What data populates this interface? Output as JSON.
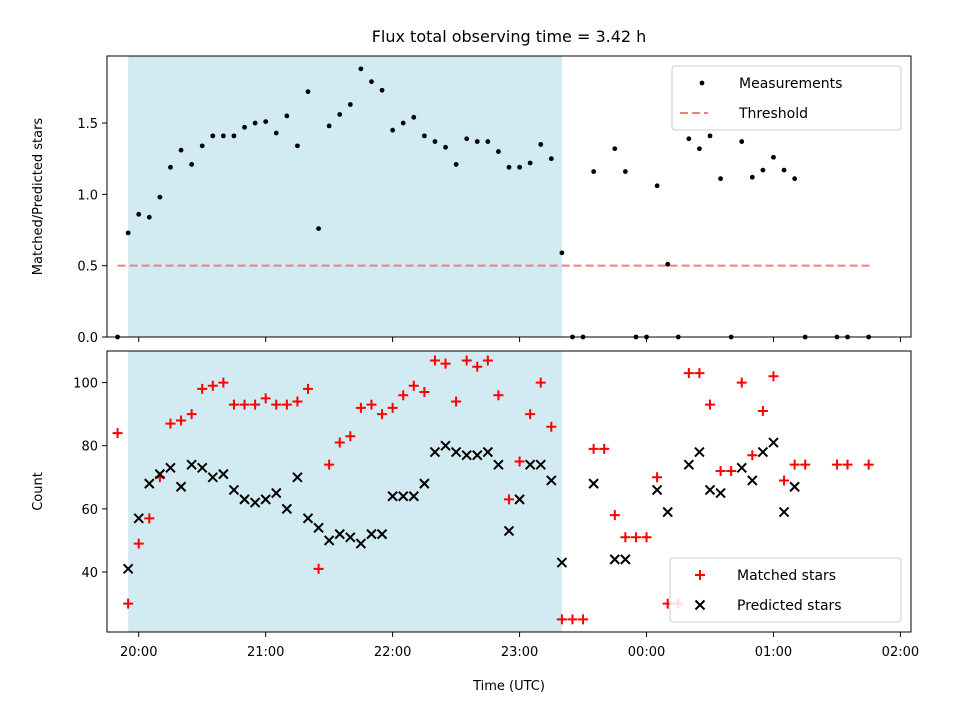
{
  "figure": {
    "title": "Flux total observing time = 3.42 h",
    "xlabel": "Time (UTC)"
  },
  "colors": {
    "shade": "#add8e6",
    "threshold": "#f08080",
    "measure": "#000000",
    "matched": "#ff0000",
    "predicted": "#000000"
  },
  "chart_data": [
    {
      "type": "scatter",
      "title": "Flux total observing time = 3.42 h",
      "ylabel": "Matched/Predicted stars",
      "xlabel": "",
      "xlim": [
        "19:45",
        "02:05"
      ],
      "ylim": [
        0,
        1.97
      ],
      "xticks": [
        "20:00",
        "21:00",
        "22:00",
        "23:00",
        "00:00",
        "01:00",
        "02:00"
      ],
      "yticks": [
        0.0,
        0.5,
        1.0,
        1.5
      ],
      "ytick_labels": [
        "0.0",
        "0.5",
        "1.0",
        "1.5"
      ],
      "legend": "top-right",
      "shaded_interval": [
        "19:55",
        "23:20"
      ],
      "threshold": {
        "name": "Threshold",
        "y": 0.5,
        "x": [
          "19:50",
          "01:46"
        ],
        "style": "dashed"
      },
      "series": [
        {
          "name": "Measurements",
          "marker": "dot",
          "points": [
            [
              "19:50",
              0.0
            ],
            [
              "19:55",
              0.73
            ],
            [
              "20:00",
              0.86
            ],
            [
              "20:05",
              0.84
            ],
            [
              "20:10",
              0.98
            ],
            [
              "20:15",
              1.19
            ],
            [
              "20:20",
              1.31
            ],
            [
              "20:25",
              1.21
            ],
            [
              "20:30",
              1.34
            ],
            [
              "20:35",
              1.41
            ],
            [
              "20:40",
              1.41
            ],
            [
              "20:45",
              1.41
            ],
            [
              "20:50",
              1.47
            ],
            [
              "20:55",
              1.5
            ],
            [
              "21:00",
              1.51
            ],
            [
              "21:05",
              1.43
            ],
            [
              "21:10",
              1.55
            ],
            [
              "21:15",
              1.34
            ],
            [
              "21:20",
              1.72
            ],
            [
              "21:25",
              0.76
            ],
            [
              "21:30",
              1.48
            ],
            [
              "21:35",
              1.56
            ],
            [
              "21:40",
              1.63
            ],
            [
              "21:45",
              1.88
            ],
            [
              "21:50",
              1.79
            ],
            [
              "21:55",
              1.73
            ],
            [
              "22:00",
              1.45
            ],
            [
              "22:05",
              1.5
            ],
            [
              "22:10",
              1.54
            ],
            [
              "22:15",
              1.41
            ],
            [
              "22:20",
              1.37
            ],
            [
              "22:25",
              1.33
            ],
            [
              "22:30",
              1.21
            ],
            [
              "22:35",
              1.39
            ],
            [
              "22:40",
              1.37
            ],
            [
              "22:45",
              1.37
            ],
            [
              "22:50",
              1.3
            ],
            [
              "22:55",
              1.19
            ],
            [
              "23:00",
              1.19
            ],
            [
              "23:05",
              1.22
            ],
            [
              "23:10",
              1.35
            ],
            [
              "23:15",
              1.25
            ],
            [
              "23:20",
              0.59
            ],
            [
              "23:25",
              0.0
            ],
            [
              "23:30",
              0.0
            ],
            [
              "23:35",
              1.16
            ],
            [
              "23:45",
              1.32
            ],
            [
              "23:50",
              1.16
            ],
            [
              "23:55",
              0.0
            ],
            [
              "00:00",
              0.0
            ],
            [
              "00:05",
              1.06
            ],
            [
              "00:10",
              0.51
            ],
            [
              "00:15",
              0.0
            ],
            [
              "00:20",
              1.39
            ],
            [
              "00:25",
              1.32
            ],
            [
              "00:30",
              1.41
            ],
            [
              "00:35",
              1.11
            ],
            [
              "00:40",
              0.0
            ],
            [
              "00:45",
              1.37
            ],
            [
              "00:50",
              1.12
            ],
            [
              "00:55",
              1.17
            ],
            [
              "01:00",
              1.26
            ],
            [
              "01:05",
              1.17
            ],
            [
              "01:10",
              1.11
            ],
            [
              "01:15",
              0.0
            ],
            [
              "01:30",
              0.0
            ],
            [
              "01:35",
              0.0
            ],
            [
              "01:45",
              0.0
            ]
          ]
        }
      ]
    },
    {
      "type": "scatter",
      "title": "",
      "ylabel": "Count",
      "xlabel": "Time (UTC)",
      "xlim": [
        "19:45",
        "02:05"
      ],
      "ylim": [
        21,
        110
      ],
      "xticks": [
        "20:00",
        "21:00",
        "22:00",
        "23:00",
        "00:00",
        "01:00",
        "02:00"
      ],
      "yticks": [
        40,
        60,
        80,
        100
      ],
      "ytick_labels": [
        "40",
        "60",
        "80",
        "100"
      ],
      "legend": "bottom-right",
      "shaded_interval": [
        "19:55",
        "23:20"
      ],
      "series": [
        {
          "name": "Matched stars",
          "marker": "plus",
          "points": [
            [
              "19:50",
              84
            ],
            [
              "19:55",
              30
            ],
            [
              "20:00",
              49
            ],
            [
              "20:05",
              57
            ],
            [
              "20:10",
              70
            ],
            [
              "20:15",
              87
            ],
            [
              "20:20",
              88
            ],
            [
              "20:25",
              90
            ],
            [
              "20:30",
              98
            ],
            [
              "20:35",
              99
            ],
            [
              "20:40",
              100
            ],
            [
              "20:45",
              93
            ],
            [
              "20:50",
              93
            ],
            [
              "20:55",
              93
            ],
            [
              "21:00",
              95
            ],
            [
              "21:05",
              93
            ],
            [
              "21:10",
              93
            ],
            [
              "21:15",
              94
            ],
            [
              "21:20",
              98
            ],
            [
              "21:25",
              41
            ],
            [
              "21:30",
              74
            ],
            [
              "21:35",
              81
            ],
            [
              "21:40",
              83
            ],
            [
              "21:45",
              92
            ],
            [
              "21:50",
              93
            ],
            [
              "21:55",
              90
            ],
            [
              "22:00",
              92
            ],
            [
              "22:05",
              96
            ],
            [
              "22:10",
              99
            ],
            [
              "22:15",
              97
            ],
            [
              "22:20",
              107
            ],
            [
              "22:25",
              106
            ],
            [
              "22:30",
              94
            ],
            [
              "22:35",
              107
            ],
            [
              "22:40",
              105
            ],
            [
              "22:45",
              107
            ],
            [
              "22:50",
              96
            ],
            [
              "22:55",
              63
            ],
            [
              "23:00",
              75
            ],
            [
              "23:05",
              90
            ],
            [
              "23:10",
              100
            ],
            [
              "23:15",
              86
            ],
            [
              "23:20",
              25
            ],
            [
              "23:25",
              25
            ],
            [
              "23:30",
              25
            ],
            [
              "23:35",
              79
            ],
            [
              "23:40",
              79
            ],
            [
              "23:45",
              58
            ],
            [
              "23:50",
              51
            ],
            [
              "23:55",
              51
            ],
            [
              "00:00",
              51
            ],
            [
              "00:05",
              70
            ],
            [
              "00:10",
              30
            ],
            [
              "00:15",
              30
            ],
            [
              "00:20",
              103
            ],
            [
              "00:25",
              103
            ],
            [
              "00:30",
              93
            ],
            [
              "00:35",
              72
            ],
            [
              "00:40",
              72
            ],
            [
              "00:45",
              100
            ],
            [
              "00:50",
              77
            ],
            [
              "00:55",
              91
            ],
            [
              "01:00",
              102
            ],
            [
              "01:05",
              69
            ],
            [
              "01:10",
              74
            ],
            [
              "01:15",
              74
            ],
            [
              "01:30",
              74
            ],
            [
              "01:35",
              74
            ],
            [
              "01:45",
              74
            ]
          ]
        },
        {
          "name": "Predicted stars",
          "marker": "x",
          "points": [
            [
              "19:55",
              41
            ],
            [
              "20:00",
              57
            ],
            [
              "20:05",
              68
            ],
            [
              "20:10",
              71
            ],
            [
              "20:15",
              73
            ],
            [
              "20:20",
              67
            ],
            [
              "20:25",
              74
            ],
            [
              "20:30",
              73
            ],
            [
              "20:35",
              70
            ],
            [
              "20:40",
              71
            ],
            [
              "20:45",
              66
            ],
            [
              "20:50",
              63
            ],
            [
              "20:55",
              62
            ],
            [
              "21:00",
              63
            ],
            [
              "21:05",
              65
            ],
            [
              "21:10",
              60
            ],
            [
              "21:15",
              70
            ],
            [
              "21:20",
              57
            ],
            [
              "21:25",
              54
            ],
            [
              "21:30",
              50
            ],
            [
              "21:35",
              52
            ],
            [
              "21:40",
              51
            ],
            [
              "21:45",
              49
            ],
            [
              "21:50",
              52
            ],
            [
              "21:55",
              52
            ],
            [
              "22:00",
              64
            ],
            [
              "22:05",
              64
            ],
            [
              "22:10",
              64
            ],
            [
              "22:15",
              68
            ],
            [
              "22:20",
              78
            ],
            [
              "22:25",
              80
            ],
            [
              "22:30",
              78
            ],
            [
              "22:35",
              77
            ],
            [
              "22:40",
              77
            ],
            [
              "22:45",
              78
            ],
            [
              "22:50",
              74
            ],
            [
              "22:55",
              53
            ],
            [
              "23:00",
              63
            ],
            [
              "23:05",
              74
            ],
            [
              "23:10",
              74
            ],
            [
              "23:15",
              69
            ],
            [
              "23:20",
              43
            ],
            [
              "23:35",
              68
            ],
            [
              "23:45",
              44
            ],
            [
              "23:50",
              44
            ],
            [
              "00:05",
              66
            ],
            [
              "00:10",
              59
            ],
            [
              "00:20",
              74
            ],
            [
              "00:25",
              78
            ],
            [
              "00:30",
              66
            ],
            [
              "00:35",
              65
            ],
            [
              "00:45",
              73
            ],
            [
              "00:50",
              69
            ],
            [
              "00:55",
              78
            ],
            [
              "01:00",
              81
            ],
            [
              "01:05",
              59
            ],
            [
              "01:10",
              67
            ]
          ]
        }
      ]
    }
  ]
}
